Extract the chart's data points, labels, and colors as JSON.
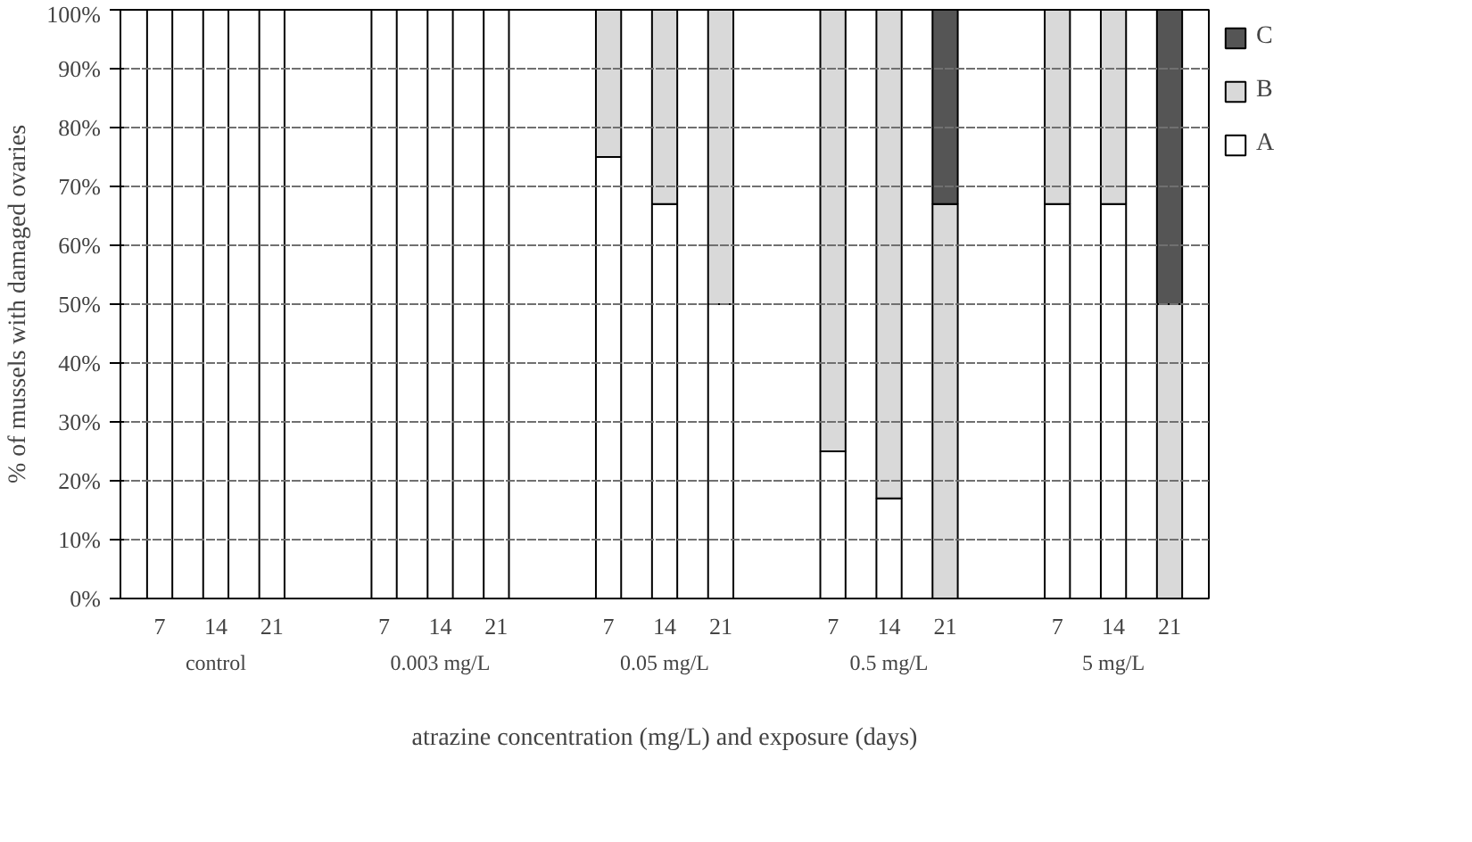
{
  "chart_data": {
    "type": "bar",
    "stacked": true,
    "xlabel": "atrazine concentration (mg/L) and exposure (days)",
    "ylabel": "% of mussels with damaged ovaries",
    "categories": [
      "7",
      "14",
      "21",
      null,
      "7",
      "14",
      "21",
      null,
      "7",
      "14",
      "21",
      null,
      "7",
      "14",
      "21",
      null,
      "7",
      "14",
      "21"
    ],
    "series": [
      {
        "name": "A",
        "color": "#ffffff",
        "values": [
          100,
          100,
          100,
          null,
          100,
          100,
          100,
          null,
          75,
          67,
          50,
          null,
          25,
          17,
          0,
          null,
          67,
          67,
          0
        ]
      },
      {
        "name": "B",
        "color": "#d9d9d9",
        "values": [
          0,
          0,
          0,
          null,
          0,
          0,
          0,
          null,
          25,
          33,
          50,
          null,
          75,
          83,
          67,
          null,
          33,
          33,
          50
        ]
      },
      {
        "name": "C",
        "color": "#555555",
        "values": [
          0,
          0,
          0,
          null,
          0,
          0,
          0,
          null,
          0,
          0,
          0,
          null,
          0,
          0,
          33,
          null,
          0,
          0,
          50
        ]
      }
    ],
    "annotations": [
      "control",
      "0.003 mg/L",
      "0.05 mg/L",
      "0.5 mg/L",
      "5 mg/L"
    ],
    "ylim": [
      0,
      100
    ],
    "yticks": [
      {
        "value": 0,
        "label": "0%"
      },
      {
        "value": 10,
        "label": "10%"
      },
      {
        "value": 20,
        "label": "20%"
      },
      {
        "value": 30,
        "label": "30%"
      },
      {
        "value": 40,
        "label": "40%"
      },
      {
        "value": 50,
        "label": "50%"
      },
      {
        "value": 60,
        "label": "60%"
      },
      {
        "value": 70,
        "label": "70%"
      },
      {
        "value": 80,
        "label": "80%"
      },
      {
        "value": 90,
        "label": "90%"
      },
      {
        "value": 100,
        "label": "100%"
      }
    ],
    "grid": "y",
    "legend": "right"
  }
}
